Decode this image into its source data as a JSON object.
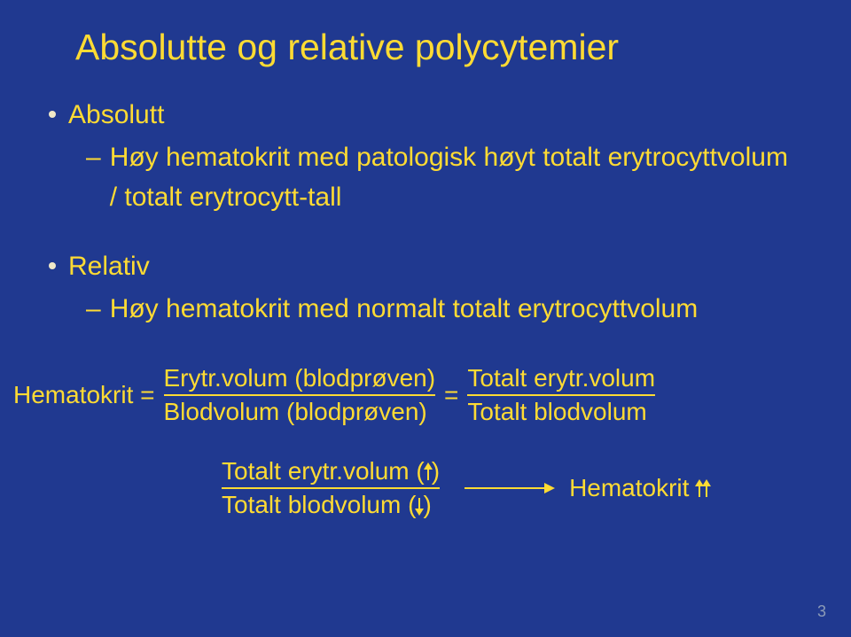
{
  "colors": {
    "background": "#203990",
    "text_primary": "#ffdb33",
    "bullet_dot": "#f0e9c8",
    "pagenum": "#8c9bb7",
    "underline": "#ffdb33"
  },
  "typography": {
    "font_family": "Verdana, Geneva, sans-serif",
    "title_fontsize": 41,
    "body_fontsize": 30,
    "formula_fontsize": 28,
    "pagenum_fontsize": 18
  },
  "title": "Absolutte og relative polycytemier",
  "bullets": [
    {
      "label": "Absolutt",
      "sub": [
        "Høy hematokrit med patologisk høyt totalt erytrocyttvolum / totalt erytrocytt-tall"
      ]
    },
    {
      "label": "Relativ",
      "sub": [
        "Høy hematokrit med normalt totalt erytrocyttvolum"
      ]
    }
  ],
  "formula1": {
    "lhs": "Hematokrit =",
    "frac1_numer": "Erytr.volum (blodprøven)",
    "frac1_denom": "Blodvolum (blodprøven)",
    "eq": "=",
    "frac2_numer": "Totalt erytr.volum",
    "frac2_denom": "Totalt blodvolum"
  },
  "formula2": {
    "frac_numer_text": "Totalt erytr.volum (",
    "frac_numer_close": ")",
    "frac_denom_text": "Totalt blodvolum (",
    "frac_denom_close": ")",
    "rhs": "Hematokrit"
  },
  "page_number": "3"
}
